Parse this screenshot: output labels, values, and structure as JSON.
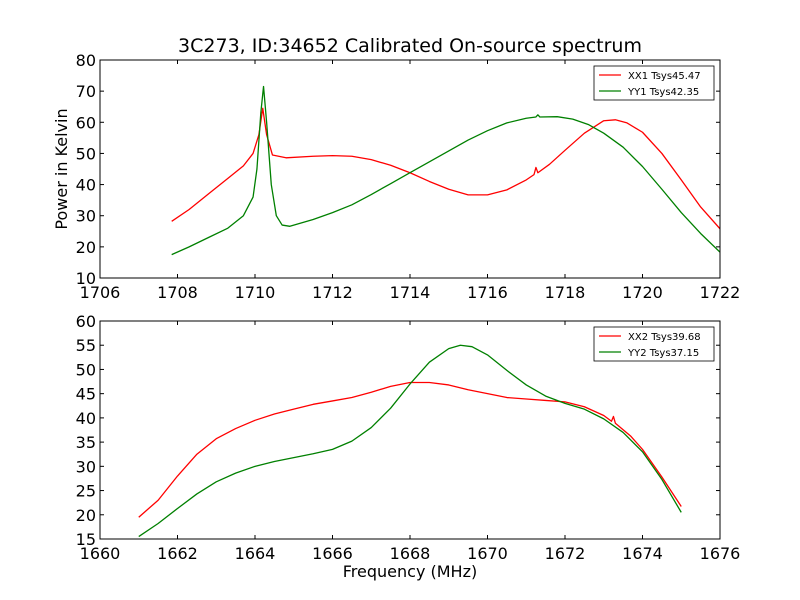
{
  "figure": {
    "title": "3C273, ID:34652 Calibrated On-source spectrum",
    "ylabel": "Power in Kelvin",
    "xlabel": "Frequency (MHz)"
  },
  "chart_data": [
    {
      "type": "line",
      "xlim": [
        1706,
        1722
      ],
      "ylim": [
        10,
        80
      ],
      "xticks": [
        1706,
        1708,
        1710,
        1712,
        1714,
        1716,
        1718,
        1720,
        1722
      ],
      "yticks": [
        10,
        20,
        30,
        40,
        50,
        60,
        70,
        80
      ],
      "grid": false,
      "legend_position": "top-right",
      "series": [
        {
          "name": "XX1 Tsys45.47",
          "color": "#ff0000",
          "points": [
            [
              1707.85,
              28.2
            ],
            [
              1708.3,
              32
            ],
            [
              1708.8,
              37
            ],
            [
              1709.3,
              42
            ],
            [
              1709.7,
              46
            ],
            [
              1709.95,
              50
            ],
            [
              1710.1,
              56
            ],
            [
              1710.2,
              64.5
            ],
            [
              1710.3,
              56
            ],
            [
              1710.45,
              49.5
            ],
            [
              1710.8,
              48.6
            ],
            [
              1711.5,
              49.1
            ],
            [
              1712.0,
              49.3
            ],
            [
              1712.5,
              49.1
            ],
            [
              1713.0,
              48
            ],
            [
              1713.5,
              46.2
            ],
            [
              1714.0,
              43.8
            ],
            [
              1714.5,
              41
            ],
            [
              1715.0,
              38.5
            ],
            [
              1715.5,
              36.7
            ],
            [
              1716.0,
              36.7
            ],
            [
              1716.5,
              38.3
            ],
            [
              1717.0,
              41.5
            ],
            [
              1717.2,
              43.2
            ],
            [
              1717.25,
              45.5
            ],
            [
              1717.3,
              43.8
            ],
            [
              1717.6,
              46.5
            ],
            [
              1718.0,
              51
            ],
            [
              1718.5,
              56.5
            ],
            [
              1719.0,
              60.5
            ],
            [
              1719.3,
              60.8
            ],
            [
              1719.6,
              59.8
            ],
            [
              1720.0,
              56.8
            ],
            [
              1720.5,
              50
            ],
            [
              1721.0,
              41.5
            ],
            [
              1721.5,
              32.8
            ],
            [
              1722.0,
              25.8
            ]
          ]
        },
        {
          "name": "YY1 Tsys42.35",
          "color": "#008000",
          "points": [
            [
              1707.85,
              17.5
            ],
            [
              1708.3,
              20
            ],
            [
              1708.8,
              23
            ],
            [
              1709.3,
              26
            ],
            [
              1709.7,
              30
            ],
            [
              1709.95,
              36
            ],
            [
              1710.05,
              45
            ],
            [
              1710.15,
              63
            ],
            [
              1710.22,
              71.5
            ],
            [
              1710.3,
              60
            ],
            [
              1710.42,
              40
            ],
            [
              1710.55,
              30
            ],
            [
              1710.7,
              27
            ],
            [
              1710.9,
              26.6
            ],
            [
              1711.5,
              28.8
            ],
            [
              1712.0,
              31
            ],
            [
              1712.5,
              33.5
            ],
            [
              1713.0,
              36.8
            ],
            [
              1713.5,
              40.3
            ],
            [
              1714.0,
              43.8
            ],
            [
              1714.5,
              47.3
            ],
            [
              1715.0,
              50.8
            ],
            [
              1715.5,
              54.3
            ],
            [
              1716.0,
              57.3
            ],
            [
              1716.5,
              59.8
            ],
            [
              1717.0,
              61.3
            ],
            [
              1717.25,
              61.7
            ],
            [
              1717.3,
              62.4
            ],
            [
              1717.35,
              61.7
            ],
            [
              1717.8,
              61.8
            ],
            [
              1718.2,
              61
            ],
            [
              1718.6,
              59.3
            ],
            [
              1719.0,
              56.5
            ],
            [
              1719.5,
              52
            ],
            [
              1720.0,
              45.8
            ],
            [
              1720.5,
              38.5
            ],
            [
              1721.0,
              31
            ],
            [
              1721.5,
              24.3
            ],
            [
              1722.0,
              18.3
            ]
          ]
        }
      ]
    },
    {
      "type": "line",
      "xlim": [
        1660,
        1676
      ],
      "ylim": [
        15,
        60
      ],
      "xticks": [
        1660,
        1662,
        1664,
        1666,
        1668,
        1670,
        1672,
        1674,
        1676
      ],
      "yticks": [
        15,
        20,
        25,
        30,
        35,
        40,
        45,
        50,
        55,
        60
      ],
      "grid": false,
      "legend_position": "top-right",
      "series": [
        {
          "name": "XX2 Tsys39.68",
          "color": "#ff0000",
          "points": [
            [
              1661.0,
              19.5
            ],
            [
              1661.5,
              23
            ],
            [
              1662.0,
              28
            ],
            [
              1662.5,
              32.5
            ],
            [
              1663.0,
              35.7
            ],
            [
              1663.5,
              37.8
            ],
            [
              1664.0,
              39.5
            ],
            [
              1664.5,
              40.8
            ],
            [
              1665.0,
              41.8
            ],
            [
              1665.5,
              42.8
            ],
            [
              1666.0,
              43.5
            ],
            [
              1666.5,
              44.2
            ],
            [
              1667.0,
              45.3
            ],
            [
              1667.5,
              46.5
            ],
            [
              1668.0,
              47.3
            ],
            [
              1668.5,
              47.3
            ],
            [
              1669.0,
              46.8
            ],
            [
              1669.5,
              45.8
            ],
            [
              1670.0,
              45
            ],
            [
              1670.5,
              44.2
            ],
            [
              1671.0,
              43.9
            ],
            [
              1671.5,
              43.6
            ],
            [
              1672.0,
              43.3
            ],
            [
              1672.5,
              42.3
            ],
            [
              1673.0,
              40.5
            ],
            [
              1673.2,
              39.3
            ],
            [
              1673.25,
              40.3
            ],
            [
              1673.3,
              38.9
            ],
            [
              1673.7,
              36.2
            ],
            [
              1674.0,
              33.5
            ],
            [
              1674.5,
              27.8
            ],
            [
              1675.0,
              21.7
            ]
          ]
        },
        {
          "name": "YY2 Tsys37.15",
          "color": "#008000",
          "points": [
            [
              1661.0,
              15.5
            ],
            [
              1661.5,
              18.2
            ],
            [
              1662.0,
              21.3
            ],
            [
              1662.5,
              24.3
            ],
            [
              1663.0,
              26.8
            ],
            [
              1663.5,
              28.6
            ],
            [
              1664.0,
              30
            ],
            [
              1664.5,
              31
            ],
            [
              1665.0,
              31.8
            ],
            [
              1665.5,
              32.6
            ],
            [
              1666.0,
              33.5
            ],
            [
              1666.5,
              35.2
            ],
            [
              1667.0,
              38
            ],
            [
              1667.5,
              42
            ],
            [
              1668.0,
              47
            ],
            [
              1668.5,
              51.5
            ],
            [
              1669.0,
              54.3
            ],
            [
              1669.3,
              55
            ],
            [
              1669.6,
              54.7
            ],
            [
              1670.0,
              53
            ],
            [
              1670.5,
              49.8
            ],
            [
              1671.0,
              46.8
            ],
            [
              1671.5,
              44.5
            ],
            [
              1672.0,
              43
            ],
            [
              1672.5,
              41.8
            ],
            [
              1673.0,
              39.8
            ],
            [
              1673.5,
              37
            ],
            [
              1674.0,
              33
            ],
            [
              1674.5,
              27.3
            ],
            [
              1675.0,
              20.5
            ]
          ]
        }
      ]
    }
  ]
}
